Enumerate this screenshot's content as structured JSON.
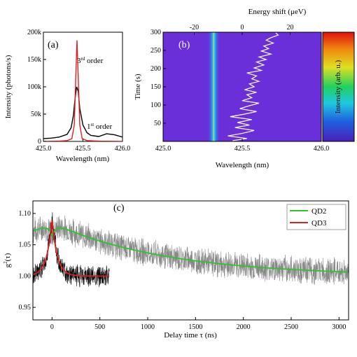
{
  "chart_data": [
    {
      "panel": "(a)",
      "type": "line",
      "xlabel": "Wavelength (nm)",
      "ylabel": "Intensity (photons/s)",
      "xlim": [
        425.0,
        426.0
      ],
      "ylim": [
        0,
        200000
      ],
      "xticks": [
        425.0,
        425.5,
        426.0
      ],
      "xtick_labels": [
        "425.0",
        "425.5",
        "426.0"
      ],
      "yticks": [
        0,
        50000,
        100000,
        150000,
        200000
      ],
      "ytick_labels": [
        "0",
        "50k",
        "100k",
        "150k",
        "200k"
      ],
      "annotations": {
        "red": {
          "base": "3",
          "sup": "rd",
          "rest": " order"
        },
        "black": {
          "base": "1",
          "sup": "st",
          "rest": " order"
        }
      },
      "series": [
        {
          "color": "#000000",
          "x": [
            425.0,
            425.1,
            425.2,
            425.3,
            425.35,
            425.38,
            425.4,
            425.42,
            425.44,
            425.46,
            425.5,
            425.55,
            425.6,
            425.7,
            425.8,
            425.9,
            426.0
          ],
          "values": [
            5000,
            6000,
            8000,
            13000,
            25000,
            48000,
            78000,
            100000,
            92000,
            60000,
            30000,
            16000,
            11000,
            9000,
            14000,
            12000,
            8000
          ]
        },
        {
          "color": "#e02020",
          "x": [
            425.0,
            425.2,
            425.3,
            425.36,
            425.39,
            425.41,
            425.425,
            425.44,
            425.46,
            425.49,
            425.55,
            425.7,
            426.0
          ],
          "values": [
            0,
            500,
            1500,
            5000,
            30000,
            120000,
            185000,
            120000,
            30000,
            5000,
            1500,
            500,
            0
          ]
        }
      ]
    },
    {
      "panel": "(b)",
      "type": "heatmap",
      "xlabel": "Wavelength (nm)",
      "ylabel": "Time (s)",
      "top_xlabel": "Energy shift (μeV)",
      "colorbar_label": "Intensity (arb. u.)",
      "xlim": [
        425.0,
        426.0
      ],
      "ylim": [
        0,
        300
      ],
      "xticks": [
        425.0,
        425.5,
        426.0
      ],
      "xtick_labels": [
        "425.0",
        "425.5",
        "426.0"
      ],
      "yticks": [
        50,
        100,
        150,
        200,
        250,
        300
      ],
      "ytick_labels": [
        "50",
        "100",
        "150",
        "200",
        "250",
        "300"
      ],
      "top_ticks": [
        -20,
        0,
        20
      ],
      "top_tick_labels": [
        "-20",
        "0",
        "20"
      ],
      "top_lim": [
        -33,
        33
      ],
      "peak_center": 425.32,
      "peak_width": 0.035,
      "energy_shift_trace": {
        "time": [
          2,
          8,
          15,
          22,
          30,
          38,
          45,
          52,
          60,
          68,
          75,
          82,
          90,
          98,
          105,
          112,
          120,
          128,
          135,
          142,
          150,
          158,
          165,
          172,
          180,
          188,
          195,
          202,
          210,
          218,
          225,
          232,
          240,
          248,
          255,
          262,
          270,
          278,
          285,
          292,
          298
        ],
        "shift": [
          -4,
          2,
          -6,
          0,
          5,
          -3,
          3,
          -2,
          4,
          -5,
          1,
          6,
          -1,
          3,
          7,
          0,
          4,
          2,
          6,
          1,
          5,
          3,
          7,
          4,
          6,
          2,
          8,
          5,
          9,
          6,
          10,
          7,
          12,
          8,
          11,
          9,
          13,
          10,
          12,
          15,
          14
        ]
      }
    },
    {
      "panel": "(c)",
      "type": "line",
      "xlabel": "Delay time τ (ns)",
      "ylabel_base": "g",
      "ylabel_sup": "2",
      "ylabel_rest": "(τ)",
      "xlim": [
        -200,
        3100
      ],
      "ylim": [
        0.93,
        1.12
      ],
      "xticks": [
        0,
        500,
        1000,
        1500,
        2000,
        2500,
        3000
      ],
      "xtick_labels": [
        "0",
        "500",
        "1000",
        "1500",
        "2000",
        "2500",
        "3000"
      ],
      "yticks": [
        0.95,
        1.0,
        1.05,
        1.1
      ],
      "ytick_labels": [
        "0.95",
        "1.00",
        "1.05",
        "1.10"
      ],
      "series": [
        {
          "name": "QD2",
          "color": "#2ec42e",
          "type": "fit",
          "baseline": 1.0,
          "amplitude": 0.085,
          "rise_ns": 40,
          "decay_ns": 1200,
          "x_range": [
            -200,
            3100
          ]
        },
        {
          "name": "QD3",
          "color": "#e02020",
          "type": "fit",
          "baseline": 1.0,
          "amplitude": 0.09,
          "decay_ns": 55,
          "x_range": [
            -200,
            600
          ]
        },
        {
          "color": "#888888",
          "type": "noisy_data",
          "x_range": [
            -200,
            3100
          ],
          "noise": 0.015
        },
        {
          "color": "#000000",
          "type": "noisy_data",
          "x_range": [
            -200,
            600
          ],
          "noise": 0.012
        }
      ]
    }
  ]
}
